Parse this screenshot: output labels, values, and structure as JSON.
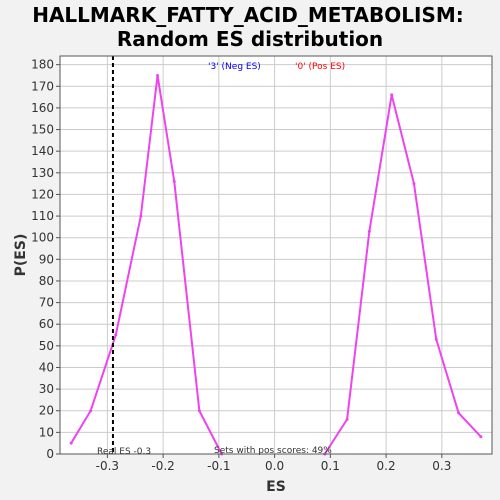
{
  "chart_data": {
    "type": "line",
    "title_line1": "HALLMARK_FATTY_ACID_METABOLISM:",
    "title_line2": "Random ES distribution",
    "xlabel": "ES",
    "ylabel": "P(ES)",
    "xlim": [
      -0.385,
      0.39
    ],
    "ylim": [
      0,
      184
    ],
    "x_ticks": [
      -0.3,
      -0.2,
      -0.1,
      0.0,
      0.1,
      0.2,
      0.3
    ],
    "x_tick_labels": [
      "-0.3",
      "-0.2",
      "-0.1",
      "0.0",
      "0.1",
      "0.2",
      "0.3"
    ],
    "y_ticks": [
      0,
      10,
      20,
      30,
      40,
      50,
      60,
      70,
      80,
      90,
      100,
      110,
      120,
      130,
      140,
      150,
      160,
      170,
      180
    ],
    "grid": true,
    "series": [
      {
        "color": "#ee44ee",
        "points": [
          {
            "x": -0.365,
            "y": 5
          },
          {
            "x": -0.33,
            "y": 20
          },
          {
            "x": -0.285,
            "y": 55
          },
          {
            "x": -0.24,
            "y": 110
          },
          {
            "x": -0.21,
            "y": 175
          },
          {
            "x": -0.18,
            "y": 126
          },
          {
            "x": -0.135,
            "y": 20
          },
          {
            "x": -0.095,
            "y": 0
          }
        ]
      },
      {
        "color": "#ee44ee",
        "points": [
          {
            "x": 0.09,
            "y": 0
          },
          {
            "x": 0.13,
            "y": 16
          },
          {
            "x": 0.17,
            "y": 103
          },
          {
            "x": 0.21,
            "y": 166
          },
          {
            "x": 0.25,
            "y": 125
          },
          {
            "x": 0.29,
            "y": 53
          },
          {
            "x": 0.33,
            "y": 19
          },
          {
            "x": 0.37,
            "y": 8
          }
        ]
      }
    ],
    "real_es": -0.29,
    "real_es_label": "Real ES -0.3",
    "pos_scores_label": "Sets with pos scores: 49%",
    "legend": [
      {
        "text": "'3' (Neg ES)",
        "color": "#0000ff"
      },
      {
        "text": "'0' (Pos ES)",
        "color": "#ff0000"
      }
    ]
  }
}
